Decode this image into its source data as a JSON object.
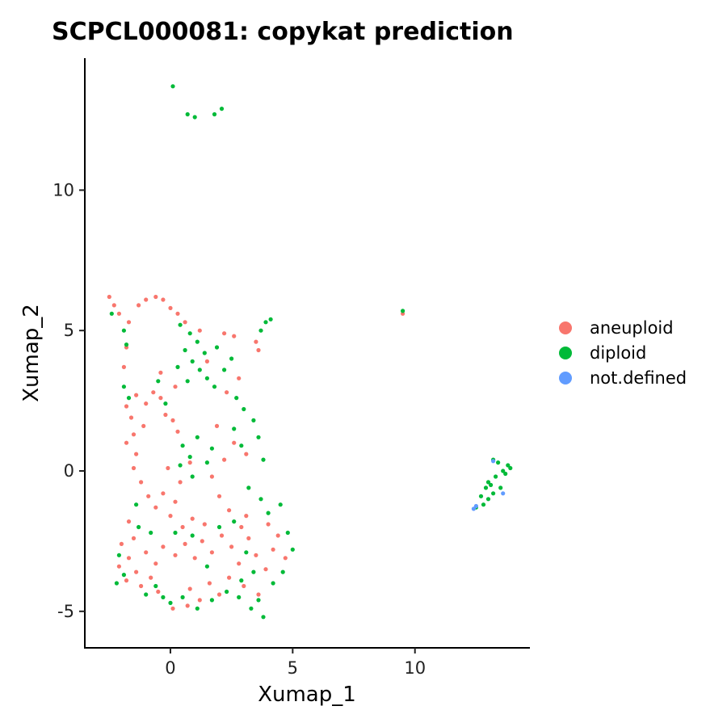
{
  "chart_data": {
    "type": "scatter",
    "title": "SCPCL000081: copykat prediction",
    "xlabel": "Xumap_1",
    "ylabel": "Xumap_2",
    "xlim": [
      -3.5,
      14.7
    ],
    "ylim": [
      -6.3,
      14.7
    ],
    "xticks": [
      0,
      5,
      10
    ],
    "yticks": [
      -5,
      0,
      5,
      10
    ],
    "grid": false,
    "legend_position": "right",
    "series": [
      {
        "name": "aneuploid",
        "color": "#F8766D",
        "values": [
          [
            -2.5,
            6.2
          ],
          [
            -2.3,
            5.9
          ],
          [
            -2.1,
            5.6
          ],
          [
            -1.7,
            5.3
          ],
          [
            -1.3,
            5.9
          ],
          [
            -1.0,
            6.1
          ],
          [
            -0.6,
            6.2
          ],
          [
            -0.3,
            6.1
          ],
          [
            0.0,
            5.8
          ],
          [
            0.3,
            5.6
          ],
          [
            0.6,
            5.3
          ],
          [
            1.2,
            5.0
          ],
          [
            2.2,
            4.9
          ],
          [
            2.6,
            4.8
          ],
          [
            3.5,
            4.6
          ],
          [
            3.6,
            4.3
          ],
          [
            9.5,
            5.6
          ],
          [
            -1.8,
            4.4
          ],
          [
            -1.9,
            3.7
          ],
          [
            -1.8,
            2.3
          ],
          [
            -1.6,
            1.9
          ],
          [
            -1.5,
            1.3
          ],
          [
            -1.8,
            1.0
          ],
          [
            -1.4,
            0.6
          ],
          [
            -1.5,
            0.1
          ],
          [
            -1.2,
            -0.4
          ],
          [
            -1.4,
            2.7
          ],
          [
            -1.0,
            2.4
          ],
          [
            -0.7,
            2.8
          ],
          [
            -0.4,
            2.6
          ],
          [
            -0.2,
            2.0
          ],
          [
            0.1,
            1.8
          ],
          [
            0.3,
            1.4
          ],
          [
            -0.9,
            -0.9
          ],
          [
            -0.6,
            -1.3
          ],
          [
            -0.3,
            -0.8
          ],
          [
            0.0,
            -1.6
          ],
          [
            0.2,
            -1.1
          ],
          [
            0.5,
            -2.0
          ],
          [
            0.9,
            -1.7
          ],
          [
            1.4,
            -1.9
          ],
          [
            2.0,
            -0.9
          ],
          [
            2.4,
            -1.4
          ],
          [
            2.9,
            -2.0
          ],
          [
            3.1,
            -1.6
          ],
          [
            1.7,
            -0.2
          ],
          [
            2.2,
            0.4
          ],
          [
            0.8,
            0.3
          ],
          [
            -2.0,
            -2.6
          ],
          [
            -1.7,
            -3.1
          ],
          [
            -1.4,
            -3.6
          ],
          [
            -1.0,
            -2.9
          ],
          [
            -0.6,
            -3.3
          ],
          [
            -0.3,
            -2.7
          ],
          [
            -1.8,
            -3.9
          ],
          [
            -1.2,
            -4.1
          ],
          [
            -0.8,
            -3.8
          ],
          [
            -0.5,
            -4.3
          ],
          [
            -2.1,
            -3.4
          ],
          [
            -1.5,
            -2.4
          ],
          [
            0.2,
            -3.0
          ],
          [
            0.6,
            -2.6
          ],
          [
            1.0,
            -3.1
          ],
          [
            1.3,
            -2.5
          ],
          [
            1.7,
            -2.9
          ],
          [
            2.1,
            -2.3
          ],
          [
            2.5,
            -2.7
          ],
          [
            2.8,
            -3.3
          ],
          [
            3.2,
            -2.4
          ],
          [
            3.5,
            -3.0
          ],
          [
            3.9,
            -3.5
          ],
          [
            4.2,
            -2.8
          ],
          [
            0.8,
            -4.2
          ],
          [
            1.2,
            -4.6
          ],
          [
            1.6,
            -4.0
          ],
          [
            2.0,
            -4.4
          ],
          [
            2.4,
            -3.8
          ],
          [
            3.0,
            -4.1
          ],
          [
            3.6,
            -4.4
          ],
          [
            4.0,
            -1.9
          ],
          [
            4.4,
            -2.3
          ],
          [
            4.7,
            -3.1
          ],
          [
            0.1,
            -4.9
          ],
          [
            0.7,
            -4.8
          ],
          [
            1.9,
            1.6
          ],
          [
            2.6,
            1.0
          ],
          [
            3.1,
            0.6
          ],
          [
            -0.4,
            3.5
          ],
          [
            0.2,
            3.0
          ],
          [
            -1.1,
            1.6
          ],
          [
            -1.7,
            -1.8
          ],
          [
            -0.1,
            0.1
          ],
          [
            0.4,
            -0.4
          ],
          [
            2.3,
            2.8
          ],
          [
            2.8,
            3.3
          ],
          [
            1.5,
            3.9
          ]
        ]
      },
      {
        "name": "diploid",
        "color": "#00BA38",
        "values": [
          [
            0.1,
            13.7
          ],
          [
            0.7,
            12.7
          ],
          [
            1.0,
            12.6
          ],
          [
            1.8,
            12.7
          ],
          [
            2.1,
            12.9
          ],
          [
            9.5,
            5.7
          ],
          [
            3.9,
            5.3
          ],
          [
            4.1,
            5.4
          ],
          [
            3.7,
            5.0
          ],
          [
            -2.4,
            5.6
          ],
          [
            -1.9,
            5.0
          ],
          [
            -1.8,
            4.5
          ],
          [
            0.4,
            5.2
          ],
          [
            0.8,
            4.9
          ],
          [
            1.1,
            4.6
          ],
          [
            1.4,
            4.2
          ],
          [
            0.6,
            4.3
          ],
          [
            0.9,
            3.9
          ],
          [
            1.2,
            3.6
          ],
          [
            0.3,
            3.7
          ],
          [
            0.7,
            3.2
          ],
          [
            1.5,
            3.3
          ],
          [
            1.8,
            3.0
          ],
          [
            2.2,
            3.6
          ],
          [
            2.5,
            4.0
          ],
          [
            1.9,
            4.4
          ],
          [
            2.7,
            2.6
          ],
          [
            3.0,
            2.2
          ],
          [
            3.4,
            1.8
          ],
          [
            2.6,
            1.5
          ],
          [
            2.9,
            0.9
          ],
          [
            3.6,
            1.2
          ],
          [
            3.8,
            0.4
          ],
          [
            0.5,
            0.9
          ],
          [
            0.8,
            0.5
          ],
          [
            1.1,
            1.2
          ],
          [
            1.5,
            0.3
          ],
          [
            0.4,
            0.2
          ],
          [
            0.9,
            -0.2
          ],
          [
            1.7,
            0.8
          ],
          [
            3.2,
            -0.6
          ],
          [
            3.7,
            -1.0
          ],
          [
            4.0,
            -1.5
          ],
          [
            4.5,
            -1.2
          ],
          [
            4.8,
            -2.2
          ],
          [
            5.0,
            -2.8
          ],
          [
            4.6,
            -3.6
          ],
          [
            4.2,
            -4.0
          ],
          [
            3.6,
            -4.6
          ],
          [
            3.8,
            -5.2
          ],
          [
            3.3,
            -4.9
          ],
          [
            2.8,
            -4.5
          ],
          [
            2.3,
            -4.3
          ],
          [
            1.7,
            -4.6
          ],
          [
            1.1,
            -4.9
          ],
          [
            0.5,
            -4.5
          ],
          [
            0.0,
            -4.7
          ],
          [
            -0.3,
            -4.5
          ],
          [
            2.0,
            -2.0
          ],
          [
            2.6,
            -1.8
          ],
          [
            3.1,
            -2.9
          ],
          [
            3.4,
            -3.6
          ],
          [
            2.9,
            -3.9
          ],
          [
            1.5,
            -3.4
          ],
          [
            0.9,
            -2.3
          ],
          [
            -0.8,
            -2.2
          ],
          [
            -1.3,
            -2.0
          ],
          [
            -2.1,
            -3.0
          ],
          [
            -1.9,
            -3.7
          ],
          [
            -2.2,
            -4.0
          ],
          [
            -1.0,
            -4.4
          ],
          [
            -0.6,
            -4.1
          ],
          [
            -1.4,
            -1.2
          ],
          [
            -1.9,
            3.0
          ],
          [
            -1.7,
            2.6
          ],
          [
            -0.5,
            3.2
          ],
          [
            -0.2,
            2.4
          ],
          [
            0.2,
            -2.2
          ],
          [
            12.5,
            -1.3
          ],
          [
            12.8,
            -1.2
          ],
          [
            13.0,
            -1.0
          ],
          [
            13.2,
            -0.8
          ],
          [
            13.5,
            -0.6
          ],
          [
            13.0,
            -0.4
          ],
          [
            13.3,
            -0.2
          ],
          [
            13.6,
            0.0
          ],
          [
            13.8,
            0.2
          ],
          [
            13.4,
            0.3
          ],
          [
            13.2,
            0.4
          ],
          [
            12.7,
            -0.9
          ],
          [
            12.9,
            -0.6
          ],
          [
            13.1,
            -0.5
          ],
          [
            13.7,
            -0.1
          ],
          [
            13.9,
            0.1
          ]
        ]
      },
      {
        "name": "not.defined",
        "color": "#619CFF",
        "values": [
          [
            12.4,
            -1.35
          ],
          [
            12.5,
            -1.25
          ],
          [
            13.2,
            0.35
          ],
          [
            13.6,
            -0.8
          ]
        ]
      }
    ]
  }
}
